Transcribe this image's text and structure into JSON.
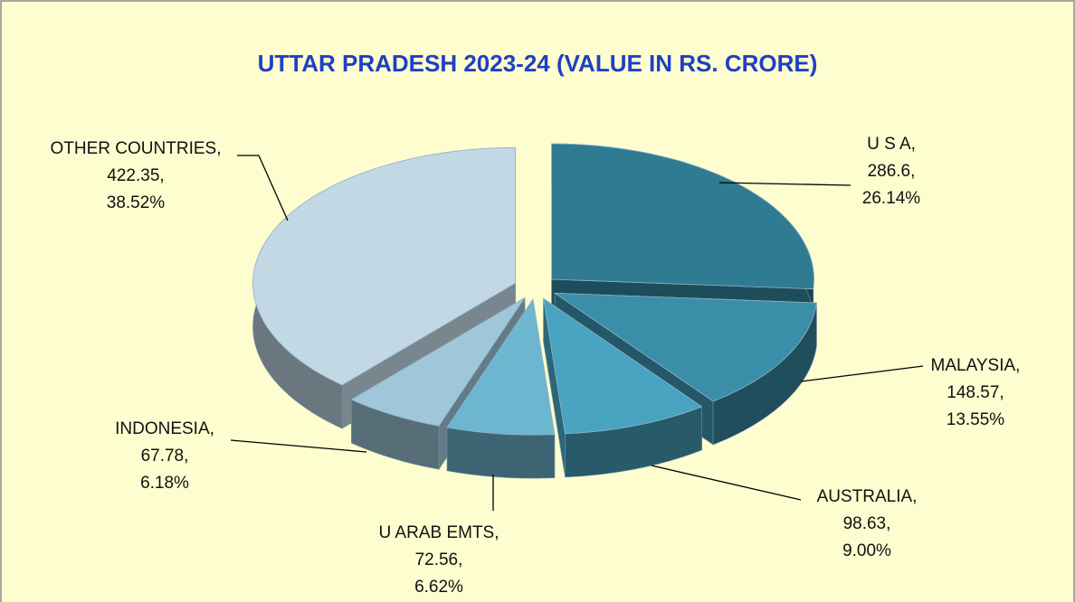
{
  "chart_data": {
    "type": "pie3d",
    "title": "UTTAR PRADESH  2023-24 (VALUE IN RS. CRORE)",
    "categories": [
      "U S A,",
      "MALAYSIA,",
      "AUSTRALIA,",
      "U ARAB EMTS,",
      "INDONESIA,",
      "OTHER COUNTRIES,"
    ],
    "values": [
      286.6,
      148.57,
      98.63,
      72.56,
      67.78,
      422.35
    ],
    "value_labels": [
      "286.6,",
      "148.57,",
      "98.63,",
      "72.56,",
      "67.78,",
      "422.35,"
    ],
    "percentages": [
      26.14,
      13.55,
      9.0,
      6.62,
      6.18,
      38.52
    ],
    "percentage_labels": [
      "26.14%",
      "13.55%",
      "9.00%",
      "6.62%",
      "6.18%",
      "38.52%"
    ],
    "colors": [
      "#2f7b92",
      "#3a8ea8",
      "#48a4c1",
      "#6db6cf",
      "#9fc6d9",
      "#c2d8e5"
    ]
  }
}
